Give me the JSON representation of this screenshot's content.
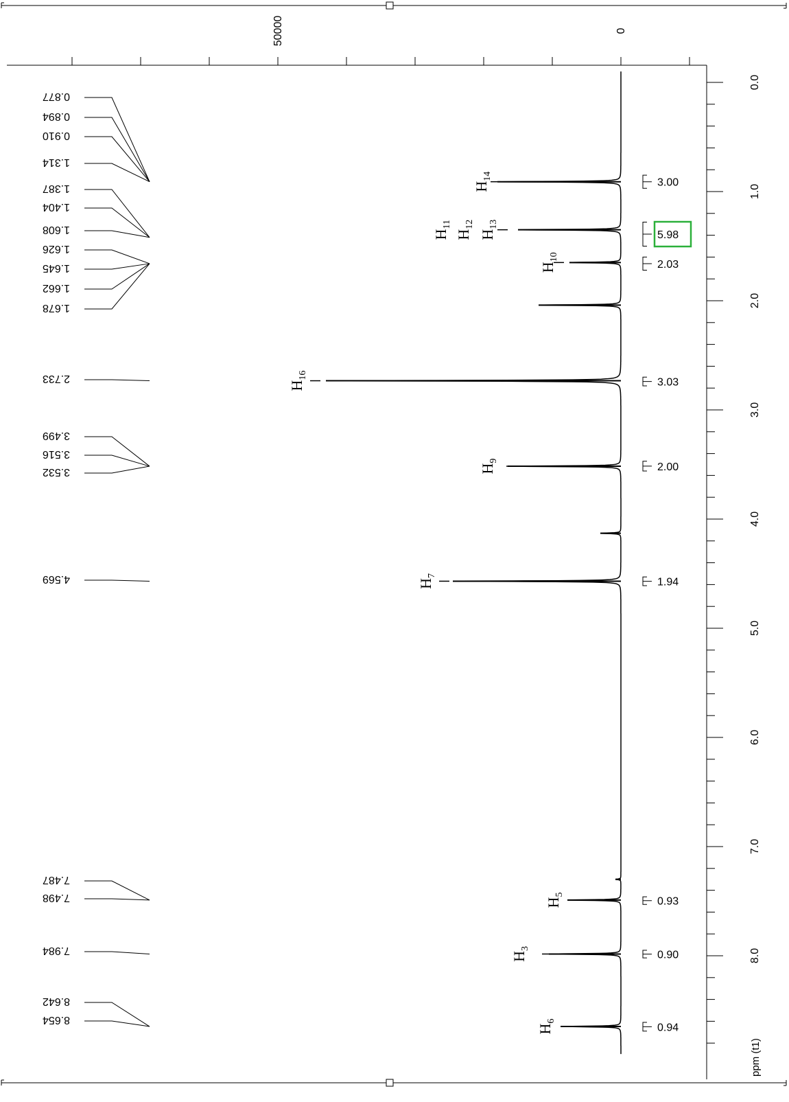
{
  "chart_data": {
    "type": "line",
    "title": "",
    "xlabel": "ppm (t1)",
    "ylabel": "",
    "xlim": [
      -0.1,
      8.95
    ],
    "ylim": [
      -12000,
      90000
    ],
    "x_ticks": [
      "0.0",
      "1.0",
      "2.0",
      "3.0",
      "4.0",
      "5.0",
      "6.0",
      "7.0",
      "8.0"
    ],
    "y_ticks": [
      "50000",
      "0"
    ],
    "series": [
      {
        "peaks": [
          {
            "ppm": 0.91,
            "intensity": 18000
          },
          {
            "ppm": 1.35,
            "intensity": 15000
          },
          {
            "ppm": 1.65,
            "intensity": 7500
          },
          {
            "ppm": 2.04,
            "intensity": 12000
          },
          {
            "ppm": 2.733,
            "intensity": 43000
          },
          {
            "ppm": 3.516,
            "intensity": 16500
          },
          {
            "ppm": 4.13,
            "intensity": 3000
          },
          {
            "ppm": 4.569,
            "intensity": 24500
          },
          {
            "ppm": 7.3,
            "intensity": 800
          },
          {
            "ppm": 7.49,
            "intensity": 7800
          },
          {
            "ppm": 7.984,
            "intensity": 10500
          },
          {
            "ppm": 8.648,
            "intensity": 8800
          }
        ]
      }
    ],
    "peak_labels": [
      "0.877",
      "0.894",
      "0.910",
      "1.314",
      "1.387",
      "1.404",
      "1.608",
      "1.626",
      "1.645",
      "1.662",
      "1.678",
      "2.733",
      "3.499",
      "3.516",
      "3.532",
      "4.569",
      "7.487",
      "7.498",
      "7.984",
      "8.642",
      "8.654"
    ],
    "peak_groups": [
      {
        "ppm": 0.91,
        "labels": [
          0,
          1,
          2,
          3
        ]
      },
      {
        "ppm": 1.42,
        "labels": [
          4,
          5,
          6
        ]
      },
      {
        "ppm": 1.66,
        "labels": [
          7,
          8,
          9,
          10
        ]
      },
      {
        "ppm": 2.733,
        "labels": [
          11
        ]
      },
      {
        "ppm": 3.516,
        "labels": [
          12,
          13,
          14
        ]
      },
      {
        "ppm": 4.569,
        "labels": [
          15
        ]
      },
      {
        "ppm": 7.49,
        "labels": [
          16,
          17
        ]
      },
      {
        "ppm": 7.984,
        "labels": [
          18
        ]
      },
      {
        "ppm": 8.648,
        "labels": [
          19,
          20
        ]
      }
    ],
    "integrals": [
      {
        "from": 0.85,
        "to": 0.97,
        "value": "3.00",
        "highlight": false
      },
      {
        "from": 1.28,
        "to": 1.5,
        "value": "5.98",
        "highlight": true
      },
      {
        "from": 1.6,
        "to": 1.72,
        "value": "2.03",
        "highlight": false
      },
      {
        "from": 2.7,
        "to": 2.78,
        "value": "3.03",
        "highlight": false
      },
      {
        "from": 3.47,
        "to": 3.56,
        "value": "2.00",
        "highlight": false
      },
      {
        "from": 4.53,
        "to": 4.61,
        "value": "1.94",
        "highlight": false
      },
      {
        "from": 7.46,
        "to": 7.53,
        "value": "0.93",
        "highlight": false
      },
      {
        "from": 7.95,
        "to": 8.02,
        "value": "0.90",
        "highlight": false
      },
      {
        "from": 8.61,
        "to": 8.69,
        "value": "0.94",
        "highlight": false
      }
    ],
    "assignments": [
      {
        "ppm": 0.91,
        "base": "H",
        "sub": "14"
      },
      {
        "ppm": 1.35,
        "base": "H",
        "sub": "11"
      },
      {
        "ppm": 1.35,
        "base": "H",
        "sub": "12"
      },
      {
        "ppm": 1.35,
        "base": "H",
        "sub": "13"
      },
      {
        "ppm": 1.65,
        "base": "H",
        "sub": "10"
      },
      {
        "ppm": 2.733,
        "base": "H",
        "sub": "16"
      },
      {
        "ppm": 3.516,
        "base": "H",
        "sub": "9"
      },
      {
        "ppm": 4.569,
        "base": "H",
        "sub": "7"
      },
      {
        "ppm": 7.49,
        "base": "H",
        "sub": "5"
      },
      {
        "ppm": 7.984,
        "base": "H",
        "sub": "3"
      },
      {
        "ppm": 8.648,
        "base": "H",
        "sub": "6"
      }
    ],
    "colors": {
      "trace": "#000000",
      "highlight": "#2bb03a",
      "background": "#ffffff"
    },
    "orientation": "rotated-90"
  }
}
